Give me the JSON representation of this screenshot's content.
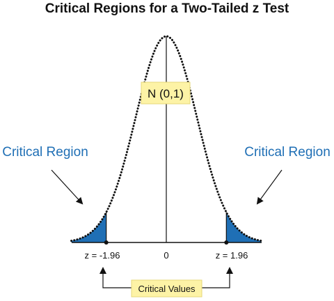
{
  "title": "Critical Regions for a Two-Tailed z Test",
  "distribution_label": "N (0,1)",
  "left_region_label": "Critical Region",
  "right_region_label": "Critical Region",
  "critical_values_label": "Critical Values",
  "ticks": {
    "left": "z = -1.96",
    "center": "0",
    "right": "z = 1.96"
  },
  "critical_z": 1.96,
  "colors": {
    "region_fill": "#1f6fb5",
    "region_text": "#1f6fb5",
    "label_box": "#fdf3a6",
    "label_box_border": "#e6d77a"
  }
}
